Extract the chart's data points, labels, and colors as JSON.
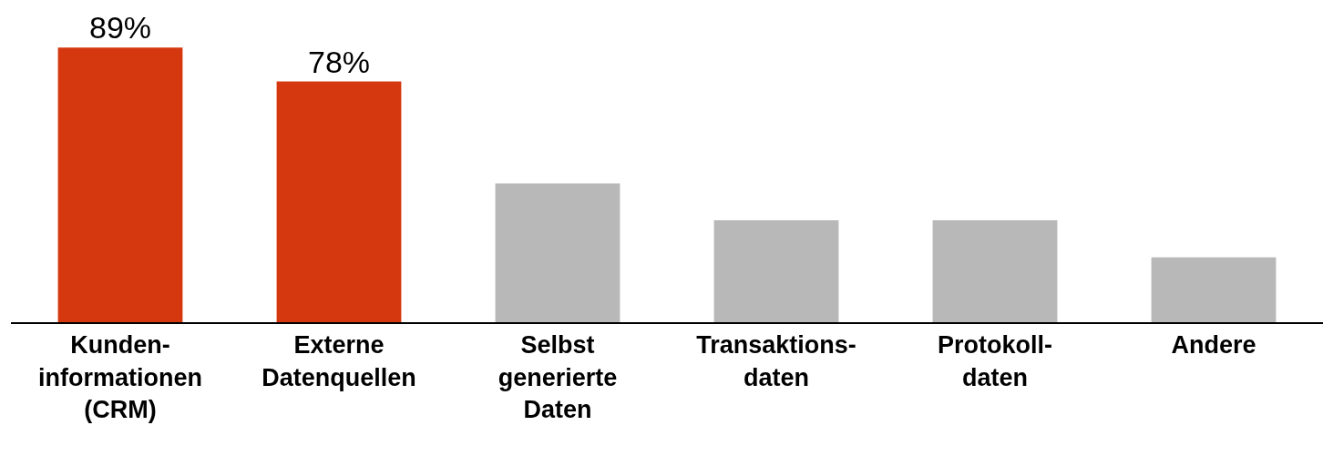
{
  "chart_data": {
    "type": "bar",
    "categories": [
      "Kunden-\ninformationen\n(CRM)",
      "Externe\nDatenquellen",
      "Selbst\ngenerierte\nDaten",
      "Transaktions-\ndaten",
      "Protokoll-\ndaten",
      "Andere"
    ],
    "values": [
      89,
      78,
      45,
      33,
      33,
      21
    ],
    "value_labels": [
      "89%",
      "78%",
      null,
      null,
      null,
      null
    ],
    "colors": [
      "#d5380f",
      "#d5380f",
      "#b8b8b8",
      "#b8b8b8",
      "#b8b8b8",
      "#b8b8b8"
    ],
    "tick_labels": "x"
  }
}
